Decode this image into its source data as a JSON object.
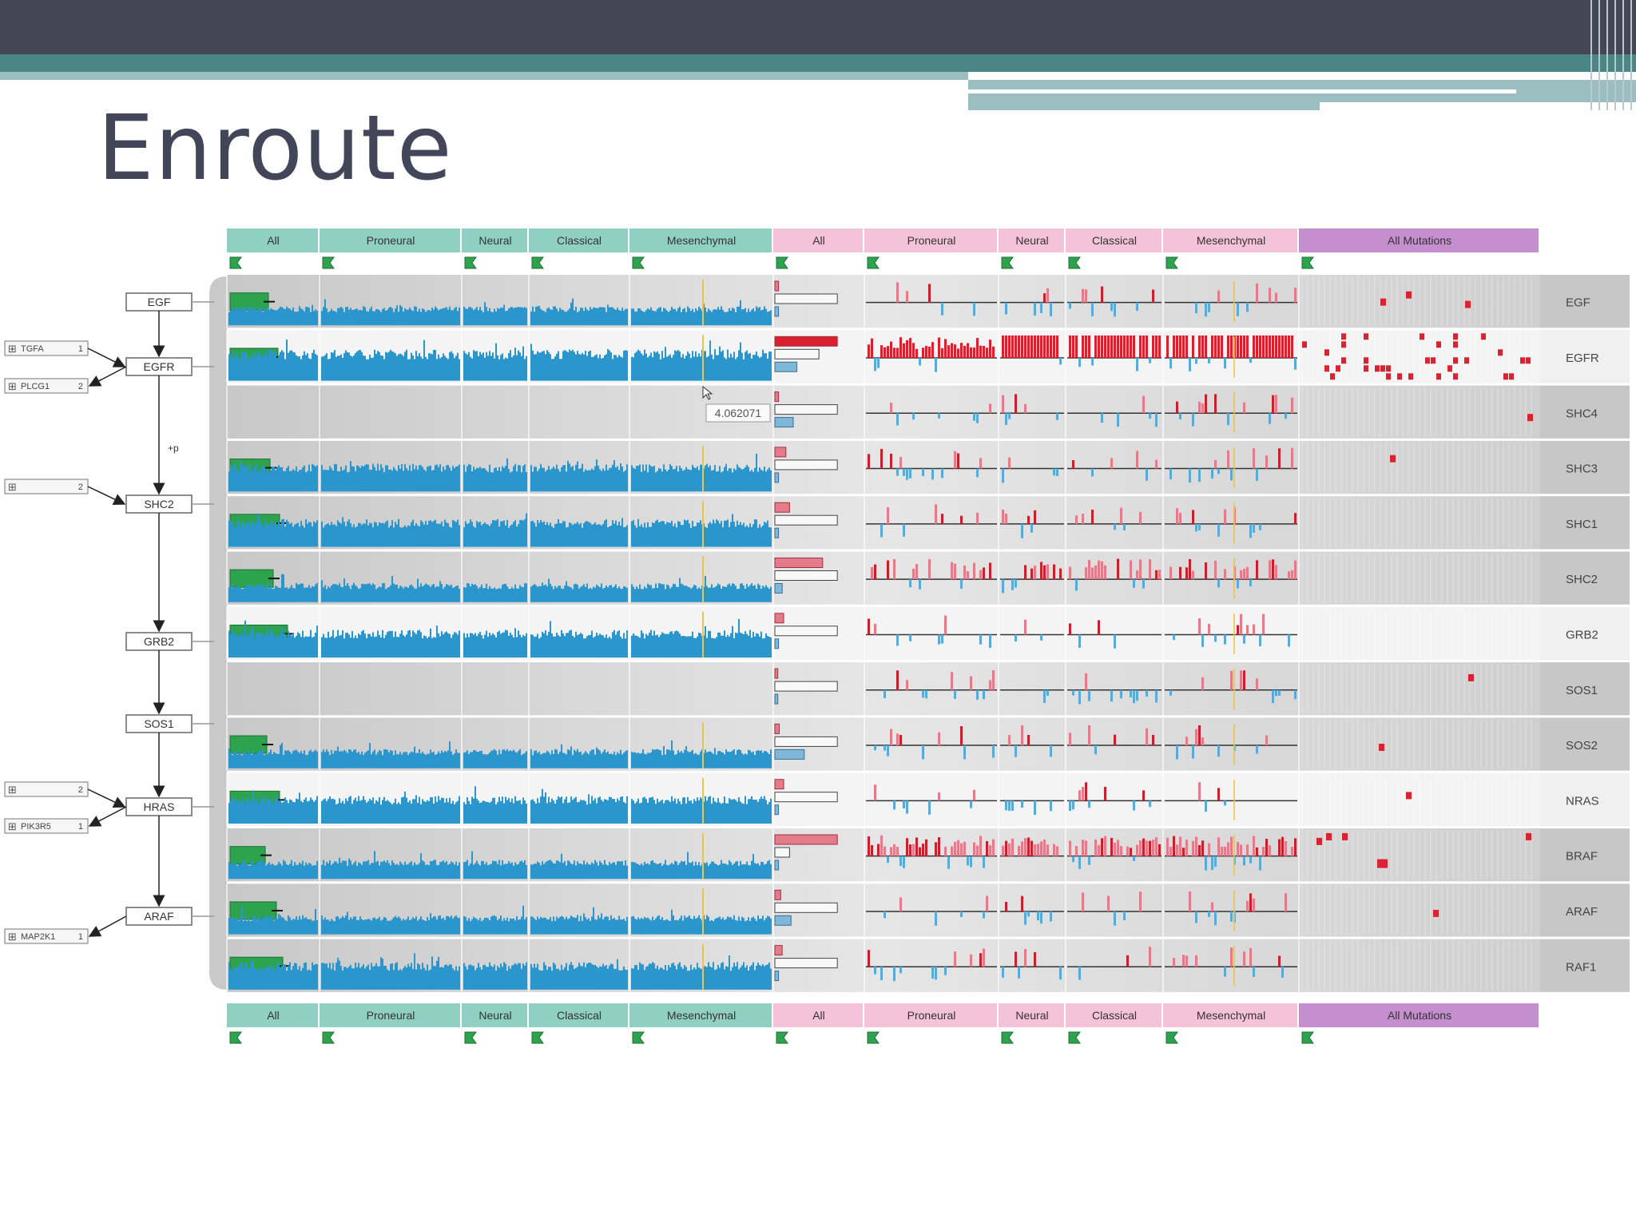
{
  "slide": {
    "title": "Enroute"
  },
  "columns": {
    "expression": [
      "All",
      "Proneural",
      "Neural",
      "Classical",
      "Mesenchymal"
    ],
    "copy_number": [
      "All",
      "Proneural",
      "Neural",
      "Classical",
      "Mesenchymal"
    ],
    "mutations": [
      "All Mutations"
    ]
  },
  "genes": [
    "EGF",
    "EGFR",
    "SHC4",
    "SHC3",
    "SHC1",
    "SHC2",
    "GRB2",
    "SOS1",
    "SOS2",
    "NRAS",
    "BRAF",
    "ARAF",
    "RAF1"
  ],
  "pathway": {
    "nodes": [
      "EGF",
      "EGFR",
      "SHC2",
      "GRB2",
      "SOS1",
      "HRAS",
      "ARAF"
    ],
    "side_nodes": [
      {
        "label": "TGFA",
        "count": "1"
      },
      {
        "label": "PLCG1",
        "count": "2"
      },
      {
        "label": "",
        "count": "2"
      },
      {
        "label": "",
        "count": "2"
      },
      {
        "label": "PIK3R5",
        "count": "1"
      },
      {
        "label": "MAP2K1",
        "count": "1"
      }
    ],
    "edge_label": "+p"
  },
  "tooltip": {
    "value": "4.062071"
  },
  "colors": {
    "expression_header": "#8fd0c3",
    "copy_header": "#f4c3d9",
    "mutation_header": "#c58fcf",
    "expression_bar": "#2b96cc",
    "green_bar": "#2ea34e",
    "amplification": "#d92331",
    "deletion": "#5aa9d6",
    "highlight": "#e8c64a"
  },
  "icons": {
    "sort_toggle": "green-flag-icon",
    "expand": "plus-square-icon"
  }
}
